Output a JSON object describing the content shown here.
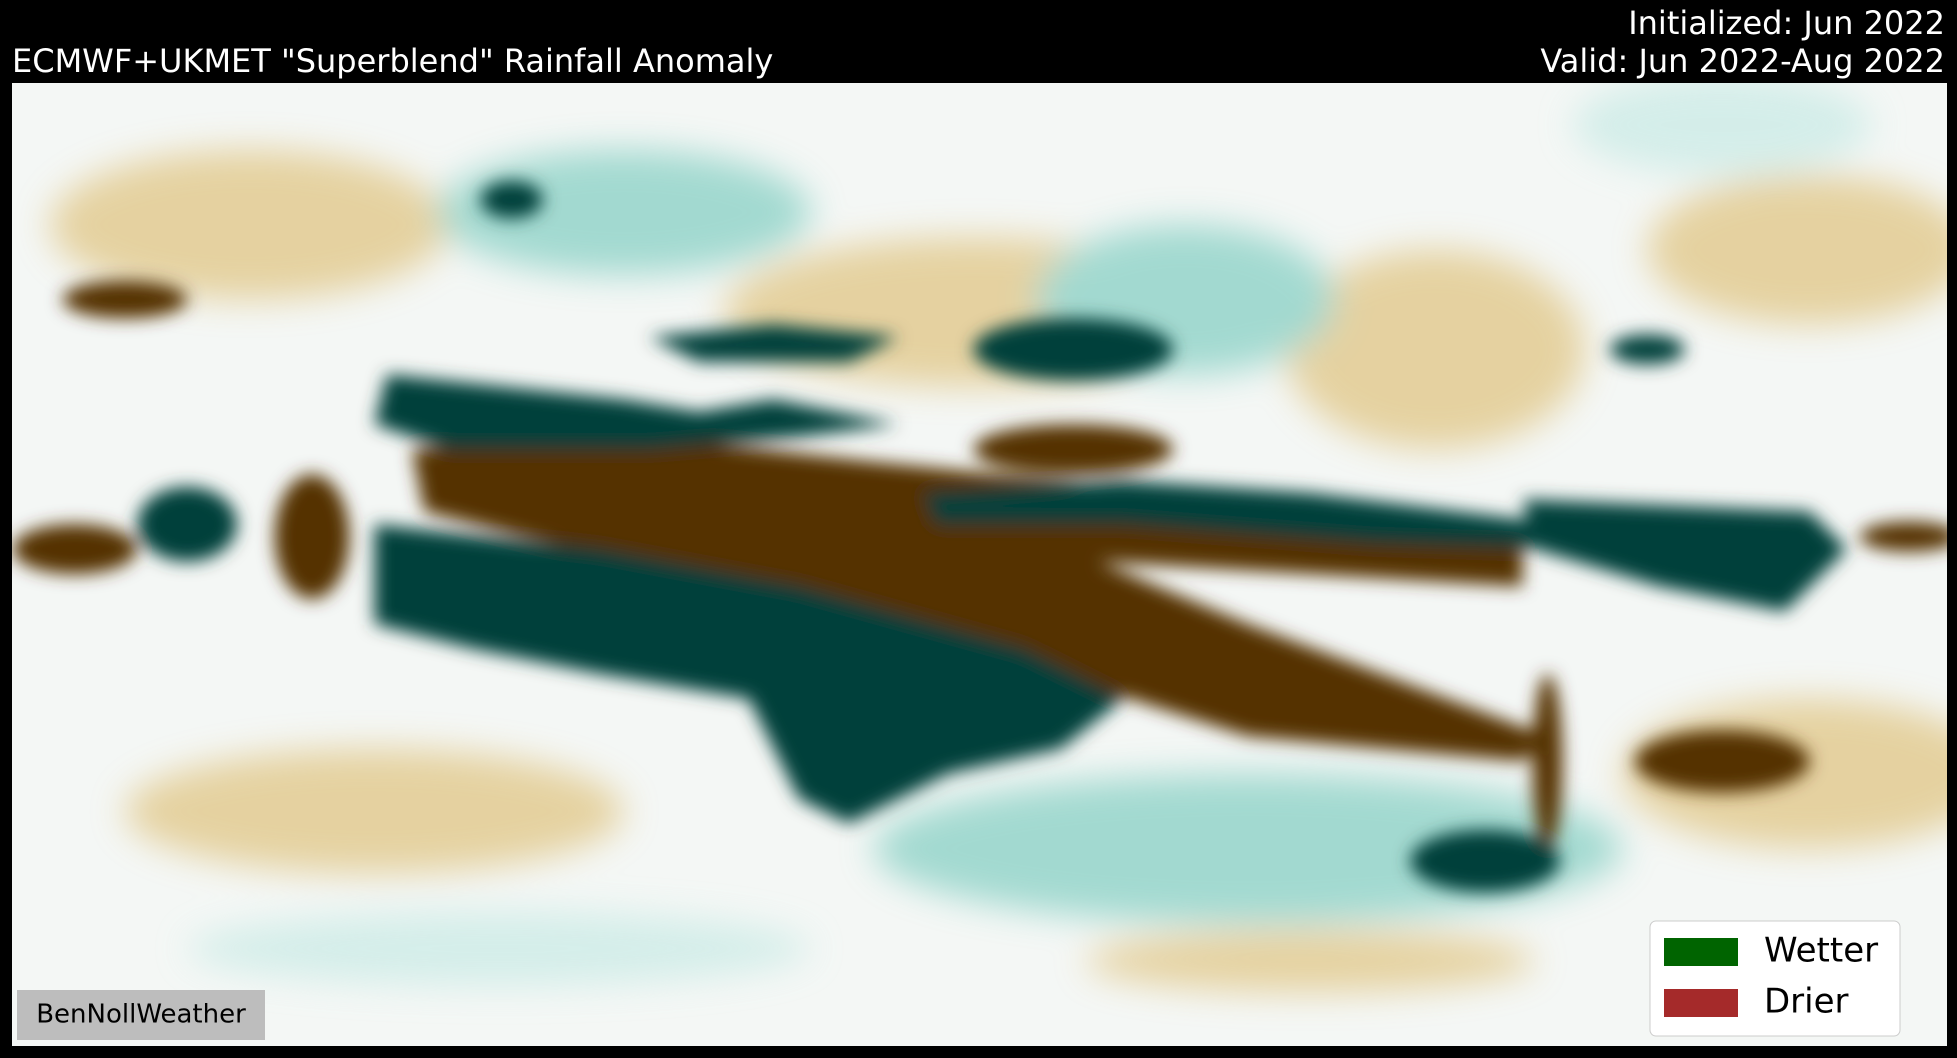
{
  "header": {
    "title": "ECMWF+UKMET \"Superblend\" Rainfall Anomaly",
    "initialized": "Initialized: Jun 2022",
    "valid": "Valid: Jun 2022-Aug 2022"
  },
  "legend": {
    "items": [
      {
        "label": "Wetter",
        "color": "#006400"
      },
      {
        "label": "Drier",
        "color": "#a52a2a"
      }
    ]
  },
  "watermark": "BenNollWeather"
}
